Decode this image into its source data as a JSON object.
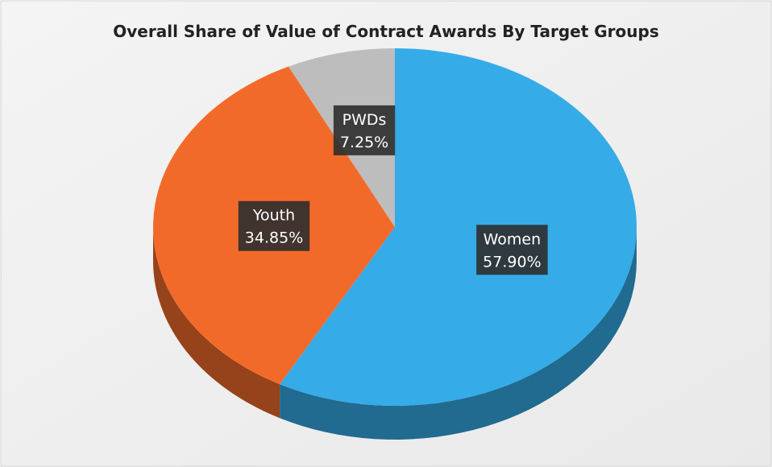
{
  "chart_data": {
    "type": "pie3d",
    "title": "Overall Share of Value of Contract Awards By Target Groups",
    "categories": [
      "Women",
      "Youth",
      "PWDs"
    ],
    "values": [
      57.9,
      34.85,
      7.25
    ],
    "value_labels": [
      "57.90%",
      "34.85%",
      "7.25%"
    ],
    "colors": [
      "#35abe8",
      "#f26a2a",
      "#bdbdbd"
    ]
  }
}
